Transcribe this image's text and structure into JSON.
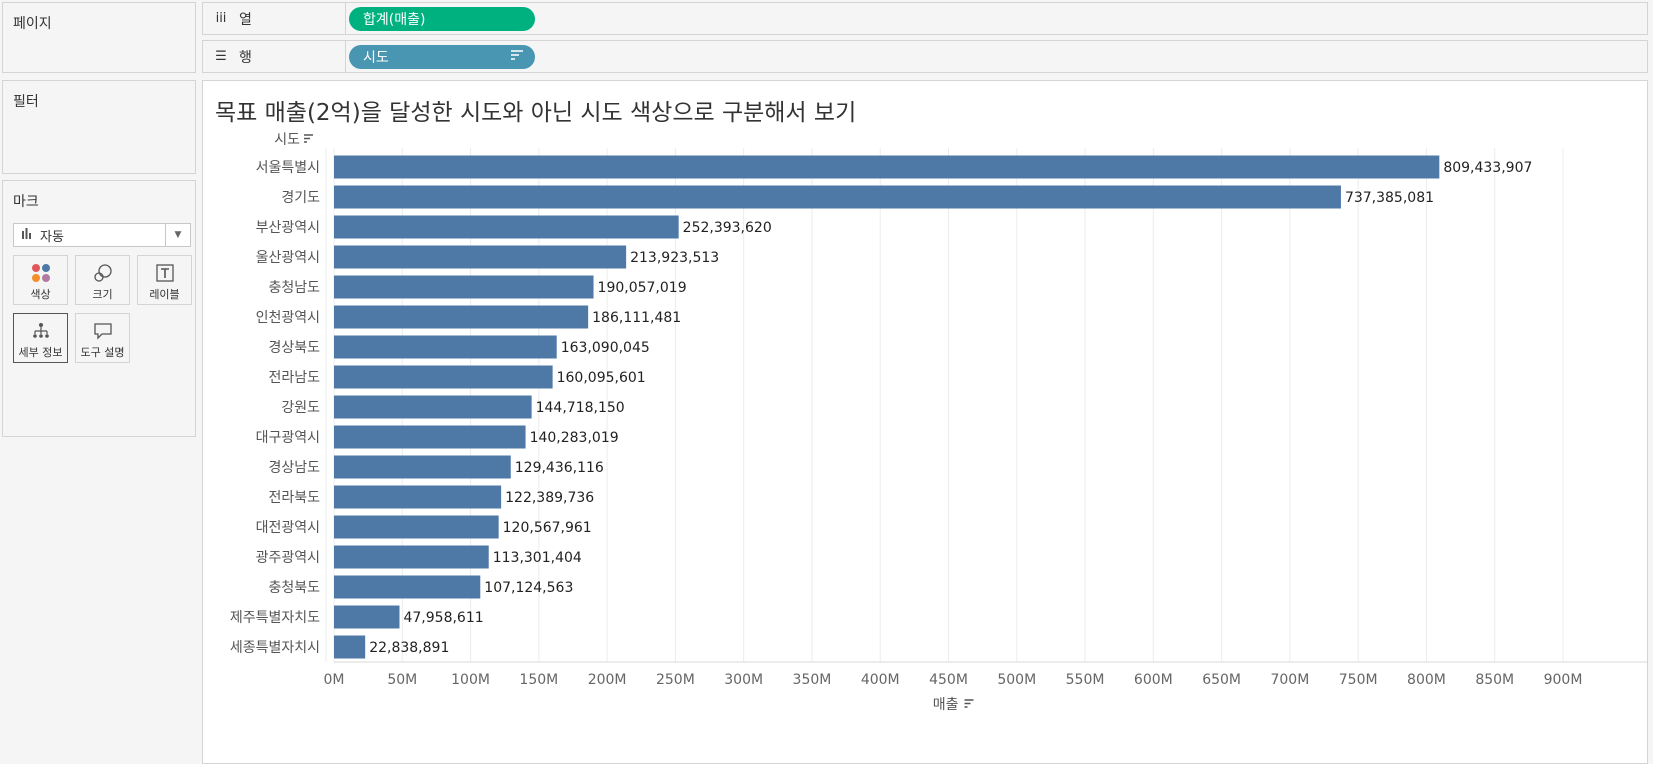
{
  "pages_panel": {
    "title": "페이지"
  },
  "filters_panel": {
    "title": "필터"
  },
  "marks_panel": {
    "title": "마크",
    "mark_type": "자동",
    "buttons": {
      "color": "색상",
      "size": "크기",
      "label": "레이블",
      "detail": "세부 정보",
      "tooltip": "도구 설명"
    }
  },
  "columns_shelf": {
    "icon": "iii",
    "label": "열",
    "pill": "합계(매출)"
  },
  "rows_shelf": {
    "icon": "☰",
    "label": "행",
    "pill": "시도"
  },
  "colors": {
    "bar": "#4e79a7",
    "col_pill": "#00b180",
    "row_pill": "#4996b2"
  },
  "chart_data": {
    "type": "bar",
    "orientation": "horizontal",
    "title": "목표 매출(2억)을 달성한 시도와 아닌 시도 색상으로 구분해서 보기",
    "ylabel": "시도",
    "xlabel": "매출",
    "categories": [
      "서울특별시",
      "경기도",
      "부산광역시",
      "울산광역시",
      "충청남도",
      "인천광역시",
      "경상북도",
      "전라남도",
      "강원도",
      "대구광역시",
      "경상남도",
      "전라북도",
      "대전광역시",
      "광주광역시",
      "충청북도",
      "제주특별자치도",
      "세종특별자치시"
    ],
    "values": [
      809433907,
      737385081,
      252393620,
      213923513,
      190057019,
      186111481,
      163090045,
      160095601,
      144718150,
      140283019,
      129436116,
      122389736,
      120567961,
      113301404,
      107124563,
      47958611,
      22838891
    ],
    "value_labels": [
      "809,433,907",
      "737,385,081",
      "252,393,620",
      "213,923,513",
      "190,057,019",
      "186,111,481",
      "163,090,045",
      "160,095,601",
      "144,718,150",
      "140,283,019",
      "129,436,116",
      "122,389,736",
      "120,567,961",
      "113,301,404",
      "107,124,563",
      "47,958,611",
      "22,838,891"
    ],
    "xlim": [
      0,
      900000000
    ],
    "x_ticks": [
      0,
      50000000,
      100000000,
      150000000,
      200000000,
      250000000,
      300000000,
      350000000,
      400000000,
      450000000,
      500000000,
      550000000,
      600000000,
      650000000,
      700000000,
      750000000,
      800000000,
      850000000,
      900000000
    ],
    "x_tick_labels": [
      "0M",
      "50M",
      "100M",
      "150M",
      "200M",
      "250M",
      "300M",
      "350M",
      "400M",
      "450M",
      "500M",
      "550M",
      "600M",
      "650M",
      "700M",
      "750M",
      "800M",
      "850M",
      "900M"
    ],
    "grid": true
  }
}
